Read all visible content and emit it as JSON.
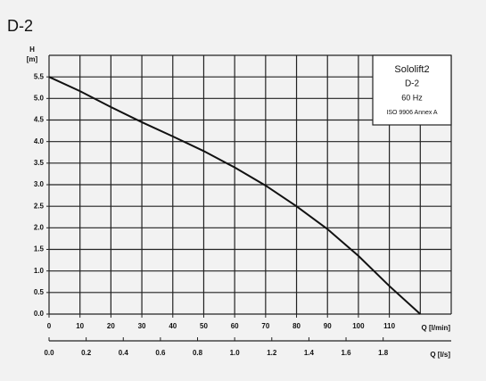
{
  "chart_data": {
    "type": "line",
    "title": "D-2",
    "y_label": "H",
    "y_unit": "[m]",
    "x_label": "Q [l/min]",
    "x2_label": "Q [l/s]",
    "x": [
      0,
      10,
      20,
      30,
      40,
      50,
      60,
      70,
      80,
      90,
      100,
      110,
      120
    ],
    "series": [
      {
        "name": "Sololift2",
        "color": "#111111",
        "values": [
          5.5,
          5.17,
          4.8,
          4.45,
          4.12,
          3.78,
          3.4,
          2.98,
          2.5,
          1.97,
          1.35,
          0.65,
          0.0
        ]
      }
    ],
    "legend_lines": [
      "Sololift2",
      "D-2",
      "60 Hz",
      "ISO 9906 Annex A"
    ],
    "legend": "top-right",
    "xlim": [
      0,
      130
    ],
    "xticks": [
      0,
      10,
      20,
      30,
      40,
      50,
      60,
      70,
      80,
      90,
      100,
      110
    ],
    "xgrid": [
      0,
      10,
      20,
      30,
      40,
      50,
      60,
      70,
      80,
      90,
      100,
      110,
      120,
      130
    ],
    "ylim": [
      0,
      6
    ],
    "yticks": [
      {
        "value": 0,
        "label": "0.0"
      },
      0.5,
      {
        "value": 1,
        "label": "1.0"
      },
      1.5,
      {
        "value": 2,
        "label": "2.0"
      },
      2.5,
      {
        "value": 3,
        "label": "3.0"
      },
      3.5,
      {
        "value": 4,
        "label": "4.0"
      },
      4.5,
      {
        "value": 5,
        "label": "5.0"
      },
      5.5
    ],
    "ygrid": [
      0,
      0.5,
      1,
      1.5,
      2,
      2.5,
      3,
      3.5,
      4,
      4.5,
      5,
      5.5,
      6
    ],
    "x2lim": [
      0,
      2.1667
    ],
    "x2ticks": [
      {
        "value": 0,
        "label": "0.0"
      },
      0.2,
      0.4,
      0.6,
      0.8,
      {
        "value": 1,
        "label": "1.0"
      },
      1.2,
      1.4,
      1.6,
      1.8
    ],
    "grid": true
  }
}
